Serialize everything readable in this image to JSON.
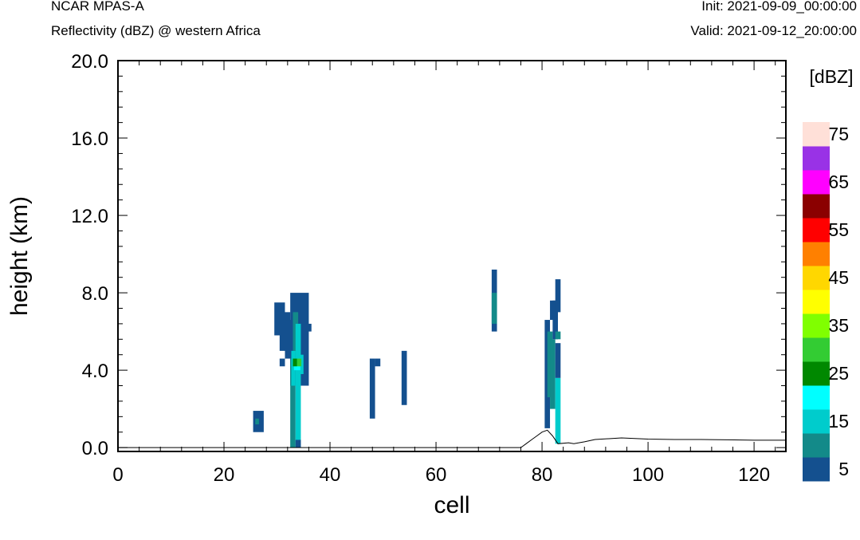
{
  "header": {
    "left_title": "NCAR MPAS-A",
    "left_subtitle": "Reflectivity (dBZ) @ western Africa",
    "right_init": "Init: 2021-09-09_00:00:00",
    "right_valid": "Valid: 2021-09-12_20:00:00"
  },
  "chart_data": {
    "type": "heatmap",
    "title": "Reflectivity (dBZ) @ western Africa",
    "xlabel": "cell",
    "ylabel": "height (km)",
    "xlim": [
      0,
      126
    ],
    "ylim": [
      -0.2,
      20.0
    ],
    "x_ticks": [
      0,
      20,
      40,
      60,
      80,
      100,
      120
    ],
    "x_tick_labels": [
      "0",
      "20",
      "40",
      "60",
      "80",
      "100",
      "120"
    ],
    "y_ticks": [
      0,
      4,
      8,
      12,
      16,
      20
    ],
    "y_tick_labels": [
      "0.0",
      "4.0",
      "8.0",
      "12.0",
      "16.0",
      "20.0"
    ],
    "colorbar": {
      "unit_label": "[dBZ]",
      "levels": [
        5,
        10,
        15,
        20,
        25,
        30,
        35,
        40,
        45,
        50,
        55,
        60,
        65,
        70,
        75
      ],
      "colors": [
        "#14508f",
        "#138a89",
        "#00cccc",
        "#00ffff",
        "#008800",
        "#33cc33",
        "#80ff00",
        "#ffff00",
        "#ffd700",
        "#ff8000",
        "#ff0000",
        "#8b0000",
        "#ff00ff",
        "#9932e6",
        "#ffe0d8"
      ],
      "tick_labels": [
        "5",
        "15",
        "25",
        "35",
        "45",
        "55",
        "65",
        "75"
      ]
    },
    "reflectivity_cells": [
      {
        "x0": 25.5,
        "x1": 27.5,
        "y0": 0.8,
        "y1": 1.9,
        "dbz": 5
      },
      {
        "x0": 25.9,
        "x1": 26.6,
        "y0": 1.2,
        "y1": 1.5,
        "dbz": 10
      },
      {
        "x0": 29.5,
        "x1": 31.5,
        "y0": 5.8,
        "y1": 7.5,
        "dbz": 5
      },
      {
        "x0": 30.5,
        "x1": 32.5,
        "y0": 5.0,
        "y1": 7.0,
        "dbz": 5
      },
      {
        "x0": 30.5,
        "x1": 31.5,
        "y0": 4.2,
        "y1": 4.6,
        "dbz": 5
      },
      {
        "x0": 31.5,
        "x1": 33.5,
        "y0": 4.6,
        "y1": 6.6,
        "dbz": 5
      },
      {
        "x0": 32.5,
        "x1": 36.0,
        "y0": 3.2,
        "y1": 8.0,
        "dbz": 5
      },
      {
        "x0": 35.5,
        "x1": 36.5,
        "y0": 6.0,
        "y1": 6.4,
        "dbz": 5
      },
      {
        "x0": 32.5,
        "x1": 33.5,
        "y0": 0.0,
        "y1": 4.6,
        "dbz": 10
      },
      {
        "x0": 33.0,
        "x1": 34.0,
        "y0": 4.5,
        "y1": 7.0,
        "dbz": 10
      },
      {
        "x0": 33.5,
        "x1": 34.5,
        "y0": 0.0,
        "y1": 6.4,
        "dbz": 15
      },
      {
        "x0": 32.7,
        "x1": 33.5,
        "y0": 3.2,
        "y1": 5.0,
        "dbz": 15
      },
      {
        "x0": 34.0,
        "x1": 35.0,
        "y0": 3.8,
        "y1": 4.8,
        "dbz": 15
      },
      {
        "x0": 33.2,
        "x1": 34.4,
        "y0": 4.0,
        "y1": 4.6,
        "dbz": 20
      },
      {
        "x0": 33.0,
        "x1": 33.8,
        "y0": 4.2,
        "y1": 4.6,
        "dbz": 25
      },
      {
        "x0": 33.8,
        "x1": 34.6,
        "y0": 4.2,
        "y1": 4.6,
        "dbz": 30
      },
      {
        "x0": 33.5,
        "x1": 34.5,
        "y0": 0.0,
        "y1": 0.4,
        "dbz": 5
      },
      {
        "x0": 47.5,
        "x1": 48.5,
        "y0": 1.5,
        "y1": 4.6,
        "dbz": 5
      },
      {
        "x0": 48.5,
        "x1": 49.5,
        "y0": 4.2,
        "y1": 4.6,
        "dbz": 5
      },
      {
        "x0": 53.5,
        "x1": 54.5,
        "y0": 2.2,
        "y1": 5.0,
        "dbz": 5
      },
      {
        "x0": 70.5,
        "x1": 71.5,
        "y0": 6.0,
        "y1": 9.2,
        "dbz": 5
      },
      {
        "x0": 70.5,
        "x1": 71.5,
        "y0": 6.4,
        "y1": 8.0,
        "dbz": 10
      },
      {
        "x0": 80.5,
        "x1": 81.5,
        "y0": 1.0,
        "y1": 6.6,
        "dbz": 5
      },
      {
        "x0": 81.0,
        "x1": 82.0,
        "y0": 2.6,
        "y1": 6.0,
        "dbz": 10
      },
      {
        "x0": 81.5,
        "x1": 82.5,
        "y0": 2.0,
        "y1": 5.6,
        "dbz": 10
      },
      {
        "x0": 81.5,
        "x1": 82.5,
        "y0": 6.6,
        "y1": 7.6,
        "dbz": 5
      },
      {
        "x0": 82.0,
        "x1": 83.0,
        "y0": 5.6,
        "y1": 7.6,
        "dbz": 5
      },
      {
        "x0": 82.5,
        "x1": 83.5,
        "y0": 7.0,
        "y1": 8.7,
        "dbz": 5
      },
      {
        "x0": 82.5,
        "x1": 83.5,
        "y0": 0.2,
        "y1": 3.6,
        "dbz": 15
      },
      {
        "x0": 82.5,
        "x1": 83.5,
        "y0": 3.6,
        "y1": 5.4,
        "dbz": 5
      },
      {
        "x0": 82.5,
        "x1": 83.5,
        "y0": 5.6,
        "y1": 6.0,
        "dbz": 10
      }
    ],
    "terrain": [
      [
        0,
        0.0
      ],
      [
        76,
        0.0
      ],
      [
        77,
        0.2
      ],
      [
        78,
        0.4
      ],
      [
        79,
        0.6
      ],
      [
        80,
        0.8
      ],
      [
        81,
        0.9
      ],
      [
        82,
        0.6
      ],
      [
        83,
        0.2
      ],
      [
        85,
        0.25
      ],
      [
        86,
        0.2
      ],
      [
        88,
        0.3
      ],
      [
        90,
        0.42
      ],
      [
        95,
        0.5
      ],
      [
        100,
        0.44
      ],
      [
        105,
        0.42
      ],
      [
        110,
        0.42
      ],
      [
        115,
        0.4
      ],
      [
        120,
        0.38
      ],
      [
        126,
        0.38
      ]
    ]
  }
}
